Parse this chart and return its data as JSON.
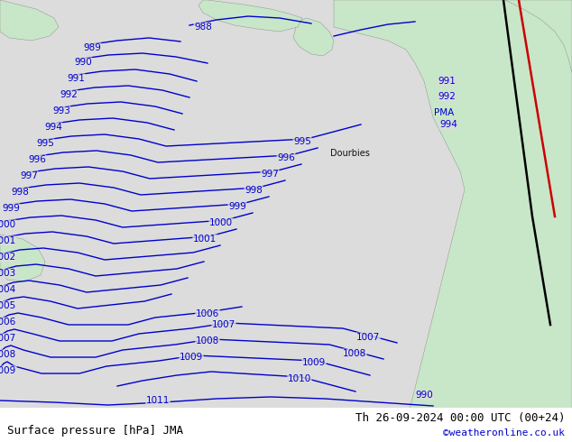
{
  "title_left": "Surface pressure [hPa] JMA",
  "title_right": "Th 26-09-2024 00:00 UTC (00+24)",
  "credit": "©weatheronline.co.uk",
  "bg_color": "#dcdcdc",
  "land_color": "#c8e6c8",
  "isobar_color": "#0000cc",
  "black_line_color": "#000000",
  "red_line_color": "#cc0000",
  "bottom_bar_color": "#ffffff",
  "label_color": "#000000",
  "credit_color": "#0000cc",
  "text_fontsize": 9,
  "credit_fontsize": 8
}
